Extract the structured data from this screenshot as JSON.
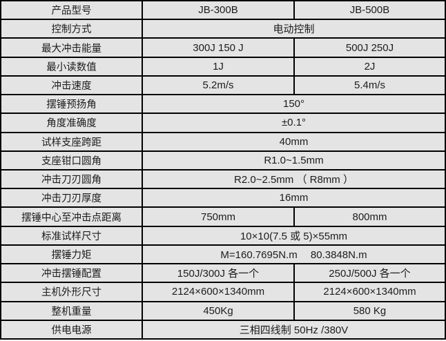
{
  "table": {
    "name": "impact-tester-spec-table",
    "colors": {
      "cell_background": "#e4e4e4",
      "border": "#000000",
      "text": "#1c1c1c"
    },
    "columns": {
      "label_header": "产品型号",
      "model_a": "JB-300B",
      "model_b": "JB-500B"
    },
    "rows": [
      {
        "label": "产品型号",
        "cells": [
          "JB-300B",
          "JB-500B"
        ]
      },
      {
        "label": "控制方式",
        "span": "电动控制"
      },
      {
        "label": "最大冲击能量",
        "cells": [
          "300J 150 J",
          "500J 250J"
        ]
      },
      {
        "label": "最小读数值",
        "cells": [
          "1J",
          "2J"
        ]
      },
      {
        "label": "冲击速度",
        "cells": [
          "5.2m/s",
          "5.4m/s"
        ]
      },
      {
        "label": "摆锤预扬角",
        "span": "150°"
      },
      {
        "label": "角度准确度",
        "span": "±0.1°"
      },
      {
        "label": "试样支座跨距",
        "span": "40mm"
      },
      {
        "label": "支座钳口圆角",
        "span": "R1.0~1.5mm"
      },
      {
        "label": "冲击刀刃圆角",
        "span": "R2.0~2.5mm （ R8mm ）"
      },
      {
        "label": "冲击刀刃厚度",
        "span": "16mm"
      },
      {
        "label": "摆锤中心至冲击点距离",
        "cells": [
          "750mm",
          "800mm"
        ]
      },
      {
        "label": "标准试样尺寸",
        "span": "10×10(7.5 或 5)×55mm"
      },
      {
        "label": "摆锤力矩",
        "span": "M=160.7695N.m　 80.3848N.m"
      },
      {
        "label": "冲击摆锤配置",
        "cells": [
          "150J/300J 各一个",
          "250J/500J 各一个"
        ]
      },
      {
        "label": "主机外形尺寸",
        "cells": [
          "2124×600×1340mm",
          "2124×600×1340mm"
        ]
      },
      {
        "label": "整机重量",
        "cells": [
          "450Kg",
          "580 Kg"
        ]
      },
      {
        "label": "供电电源",
        "span": "三相四线制 50Hz /380V"
      }
    ]
  }
}
